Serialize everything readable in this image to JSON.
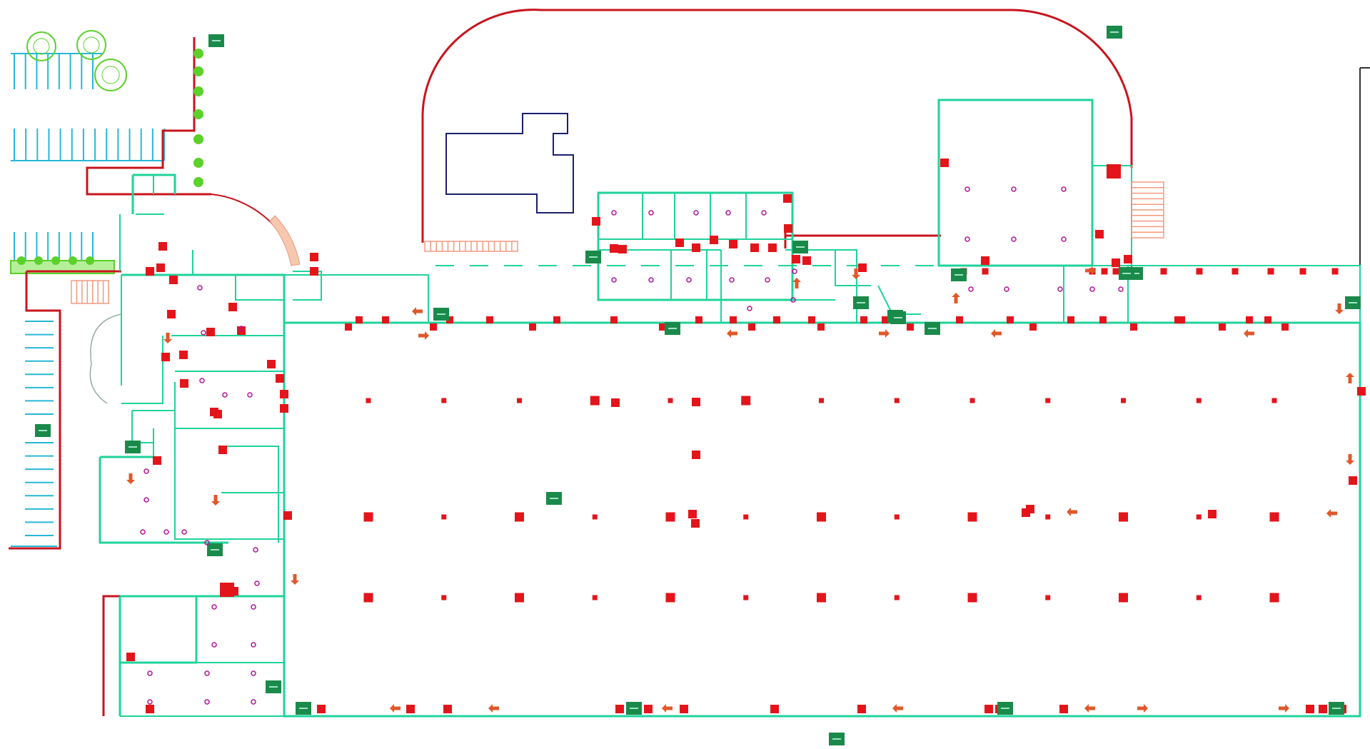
{
  "plan": {
    "colors": {
      "room_wall": "#1fd39a",
      "exterior_wall": "#c8141e",
      "extinguisher": "#e3151b",
      "exit_sign": "#1a8a4a",
      "arrow": "#e0582a",
      "detector": "#b0129a",
      "parking": "#27b7d8",
      "tree": "#5bd12a",
      "outline": "#1b1f6e",
      "stairs": "#f39a80"
    },
    "legend_icons": [
      "fire-extinguisher-icon",
      "emergency-exit-sign-icon",
      "evacuation-arrow-icon",
      "smoke-detector-icon",
      "tree-icon",
      "stairs-icon"
    ],
    "warehouse_column_grid": {
      "columns": 13,
      "rows": 3
    }
  }
}
